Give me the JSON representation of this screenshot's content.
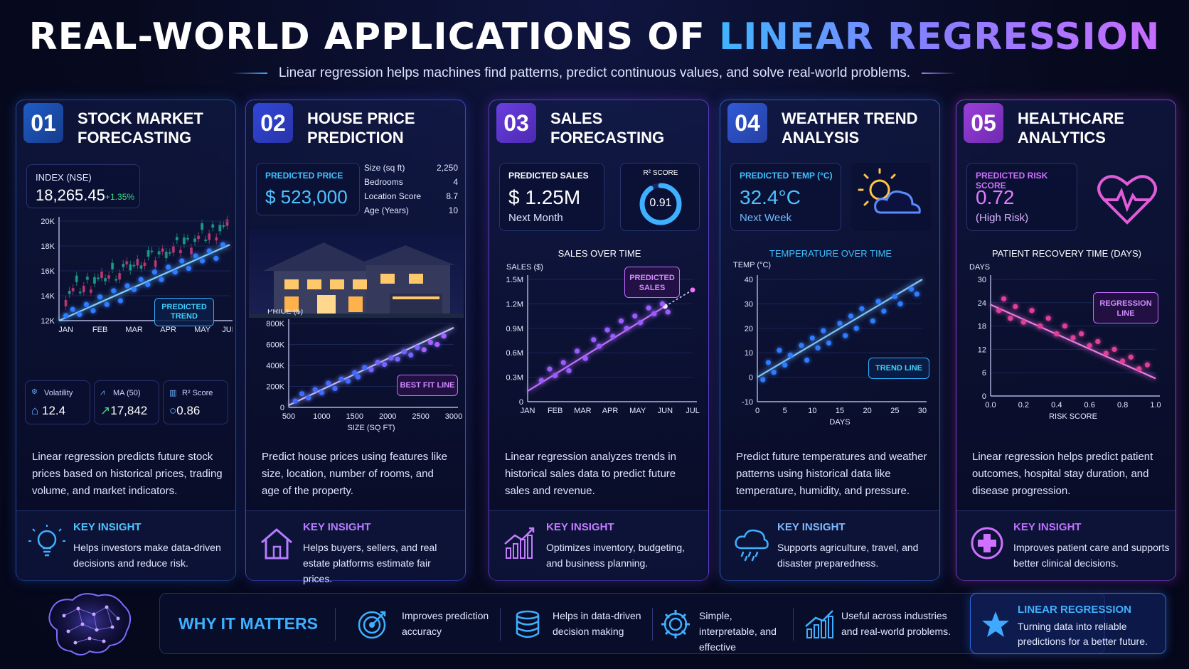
{
  "header": {
    "title_main": "REAL-WORLD APPLICATIONS OF ",
    "title_highlight": "LINEAR REGRESSION",
    "subtitle": "Linear regression helps machines find patterns, predict continuous values, and solve real-world problems."
  },
  "cards": [
    {
      "number": "01",
      "title": "STOCK MARKET FORECASTING",
      "index_label": "INDEX (NSE)",
      "index_value": "18,265.45",
      "index_change": "+1.35%",
      "annotation": "PREDICTED TREND",
      "stats": [
        {
          "label": "Volatility",
          "value": "12.4"
        },
        {
          "label": "MA (50)",
          "value": "17,842"
        },
        {
          "label": "R² Score",
          "value": "0.86"
        }
      ],
      "description": "Linear regression predicts future stock prices based on historical prices, trading volume, and market indicators.",
      "insight_heading": "KEY INSIGHT",
      "insight_text": "Helps investors make data-driven decisions and reduce risk."
    },
    {
      "number": "02",
      "title": "HOUSE PRICE PREDICTION",
      "price_label": "PREDICTED PRICE",
      "price_value": "$ 523,000",
      "features": [
        {
          "label": "Size (sq ft)",
          "value": "2,250"
        },
        {
          "label": "Bedrooms",
          "value": "4"
        },
        {
          "label": "Location Score",
          "value": "8.7"
        },
        {
          "label": "Age (Years)",
          "value": "10"
        }
      ],
      "annotation": "BEST FIT LINE",
      "description": "Predict house prices using features like size, location, number of rooms, and age of the property.",
      "insight_heading": "KEY INSIGHT",
      "insight_text": "Helps buyers, sellers, and real estate platforms estimate fair prices."
    },
    {
      "number": "03",
      "title": "SALES FORECASTING",
      "sales_label": "PREDICTED SALES",
      "sales_value": "$ 1.25M",
      "sales_sub": "Next Month",
      "r2_label": "R² SCORE",
      "r2_value": "0.91",
      "r2_fraction": 0.91,
      "annotation": "PREDICTED SALES",
      "description": "Linear regression analyzes trends in historical sales data to predict future sales and revenue.",
      "insight_heading": "KEY INSIGHT",
      "insight_text": "Optimizes inventory, budgeting, and business planning."
    },
    {
      "number": "04",
      "title": "WEATHER TREND ANALYSIS",
      "temp_label": "PREDICTED TEMP (°C)",
      "temp_value": "32.4°C",
      "temp_sub": "Next Week",
      "annotation": "TREND LINE",
      "description": "Predict future temperatures and weather patterns using historical data like temperature, humidity, and pressure.",
      "insight_heading": "KEY INSIGHT",
      "insight_text": "Supports agriculture, travel, and disaster preparedness."
    },
    {
      "number": "05",
      "title": "HEALTHCARE ANALYTICS",
      "risk_label": "PREDICTED RISK SCORE",
      "risk_value": "0.72",
      "risk_sub": "(High Risk)",
      "annotation": "REGRESSION LINE",
      "description": "Linear regression helps predict patient outcomes, hospital stay duration, and disease progression.",
      "insight_heading": "KEY INSIGHT",
      "insight_text": "Improves patient care and supports better clinical decisions."
    }
  ],
  "chart_data": [
    {
      "type": "line",
      "series": [],
      "x": [
        "JAN",
        "FEB",
        "MAR",
        "APR",
        "MAY",
        "JUN"
      ],
      "ylim": [
        12000,
        20000
      ],
      "yticks": [
        "12K",
        "14K",
        "16K",
        "18K",
        "20K"
      ],
      "points": [
        [
          0.2,
          12400
        ],
        [
          0.4,
          12900
        ],
        [
          0.6,
          12500
        ],
        [
          0.8,
          13300
        ],
        [
          1.0,
          12800
        ],
        [
          1.2,
          13900
        ],
        [
          1.4,
          13300
        ],
        [
          1.6,
          14400
        ],
        [
          1.8,
          13600
        ],
        [
          2.0,
          14800
        ],
        [
          2.2,
          14500
        ],
        [
          2.4,
          15300
        ],
        [
          2.6,
          14900
        ],
        [
          2.8,
          15900
        ],
        [
          3.0,
          15300
        ],
        [
          3.2,
          16300
        ],
        [
          3.4,
          15900
        ],
        [
          3.6,
          16800
        ],
        [
          3.8,
          16200
        ],
        [
          4.0,
          17200
        ],
        [
          4.2,
          16800
        ],
        [
          4.4,
          17600
        ],
        [
          4.6,
          17000
        ],
        [
          4.8,
          18100
        ]
      ],
      "trend": [
        [
          0,
          12000
        ],
        [
          5,
          18100
        ]
      ]
    },
    {
      "type": "scatter",
      "xlabel": "SIZE (SQ FT)",
      "ylabel": "PRICE ($)",
      "xlim": [
        500,
        3000
      ],
      "ylim": [
        0,
        800000
      ],
      "xticks": [
        "500",
        "1000",
        "1500",
        "2000",
        "2500",
        "3000"
      ],
      "yticks": [
        "0",
        "200K",
        "400K",
        "600K",
        "800K"
      ],
      "points": [
        [
          600,
          60000
        ],
        [
          700,
          130000
        ],
        [
          800,
          90000
        ],
        [
          900,
          170000
        ],
        [
          1000,
          140000
        ],
        [
          1100,
          230000
        ],
        [
          1200,
          180000
        ],
        [
          1300,
          270000
        ],
        [
          1400,
          250000
        ],
        [
          1500,
          330000
        ],
        [
          1550,
          290000
        ],
        [
          1650,
          380000
        ],
        [
          1750,
          360000
        ],
        [
          1850,
          430000
        ],
        [
          1950,
          410000
        ],
        [
          2050,
          470000
        ],
        [
          2150,
          460000
        ],
        [
          2250,
          530000
        ],
        [
          2350,
          500000
        ],
        [
          2450,
          570000
        ],
        [
          2550,
          550000
        ],
        [
          2650,
          620000
        ],
        [
          2750,
          600000
        ],
        [
          2850,
          680000
        ]
      ],
      "trend": [
        [
          500,
          20000
        ],
        [
          3000,
          760000
        ]
      ]
    },
    {
      "type": "scatter",
      "title": "SALES OVER TIME",
      "ylabel": "SALES ($)",
      "x": [
        "JAN",
        "FEB",
        "MAR",
        "APR",
        "MAY",
        "JUN",
        "JUL"
      ],
      "ylim": [
        0,
        1500000
      ],
      "yticks": [
        "0",
        "0.3M",
        "0.6M",
        "0.9M",
        "1.2M",
        "1.5M"
      ],
      "points": [
        [
          0.5,
          260000
        ],
        [
          0.8,
          400000
        ],
        [
          1.0,
          320000
        ],
        [
          1.3,
          480000
        ],
        [
          1.5,
          380000
        ],
        [
          1.8,
          620000
        ],
        [
          2.1,
          530000
        ],
        [
          2.4,
          760000
        ],
        [
          2.6,
          680000
        ],
        [
          2.9,
          880000
        ],
        [
          3.1,
          800000
        ],
        [
          3.4,
          990000
        ],
        [
          3.6,
          900000
        ],
        [
          3.9,
          1050000
        ],
        [
          4.1,
          970000
        ],
        [
          4.4,
          1150000
        ],
        [
          4.6,
          1080000
        ],
        [
          4.9,
          1200000
        ],
        [
          5.1,
          1100000
        ]
      ],
      "trend": [
        [
          0,
          130000
        ],
        [
          5.0,
          1170000
        ]
      ],
      "forecast": [
        [
          5.0,
          1170000
        ],
        [
          6.0,
          1370000
        ]
      ]
    },
    {
      "type": "scatter",
      "title": "TEMPERATURE OVER TIME",
      "xlabel": "DAYS",
      "ylabel": "TEMP (°C)",
      "xlim": [
        0,
        30
      ],
      "ylim": [
        -10,
        40
      ],
      "xticks": [
        "0",
        "5",
        "10",
        "15",
        "20",
        "25",
        "30"
      ],
      "yticks": [
        "-10",
        "0",
        "10",
        "20",
        "30",
        "40"
      ],
      "points": [
        [
          1,
          -1
        ],
        [
          2,
          6
        ],
        [
          3,
          2
        ],
        [
          4,
          11
        ],
        [
          5,
          5
        ],
        [
          6,
          9
        ],
        [
          8,
          13
        ],
        [
          9,
          7
        ],
        [
          10,
          16
        ],
        [
          11,
          12
        ],
        [
          12,
          19
        ],
        [
          13,
          14
        ],
        [
          15,
          22
        ],
        [
          16,
          17
        ],
        [
          17,
          25
        ],
        [
          18,
          20
        ],
        [
          19,
          28
        ],
        [
          21,
          23
        ],
        [
          22,
          31
        ],
        [
          23,
          27
        ],
        [
          25,
          33
        ],
        [
          26,
          30
        ],
        [
          28,
          36
        ],
        [
          29,
          34
        ]
      ],
      "trend": [
        [
          0,
          0
        ],
        [
          30,
          40
        ]
      ]
    },
    {
      "type": "scatter",
      "title": "PATIENT RECOVERY TIME (DAYS)",
      "xlabel": "RISK SCORE",
      "ylabel": "DAYS",
      "xlim": [
        0.0,
        1.0
      ],
      "ylim": [
        0,
        30
      ],
      "xticks": [
        "0.0",
        "0.2",
        "0.4",
        "0.6",
        "0.8",
        "1.0"
      ],
      "yticks": [
        "0",
        "6",
        "12",
        "18",
        "24",
        "30"
      ],
      "points": [
        [
          0.05,
          22
        ],
        [
          0.08,
          25
        ],
        [
          0.12,
          20
        ],
        [
          0.15,
          23
        ],
        [
          0.2,
          19
        ],
        [
          0.25,
          22
        ],
        [
          0.3,
          18
        ],
        [
          0.35,
          20
        ],
        [
          0.4,
          16
        ],
        [
          0.45,
          18
        ],
        [
          0.5,
          15
        ],
        [
          0.55,
          16
        ],
        [
          0.6,
          13
        ],
        [
          0.65,
          14
        ],
        [
          0.7,
          11
        ],
        [
          0.75,
          12
        ],
        [
          0.8,
          9
        ],
        [
          0.85,
          10
        ],
        [
          0.9,
          7
        ],
        [
          0.95,
          8
        ]
      ],
      "trend": [
        [
          0,
          23.5
        ],
        [
          1.0,
          4.5
        ]
      ]
    }
  ],
  "bottom": {
    "why_label": "WHY IT MATTERS",
    "items": [
      {
        "icon": "target-icon",
        "text": "Improves prediction accuracy"
      },
      {
        "icon": "database-icon",
        "text": "Helps in data-driven decision making"
      },
      {
        "icon": "gear-icon",
        "text": "Simple, interpretable, and effective"
      },
      {
        "icon": "bar-chart-icon",
        "text": "Useful across industries and real-world problems."
      }
    ],
    "callout_title": "LINEAR REGRESSION",
    "callout_text": "Turning data into reliable predictions for a better future."
  },
  "colors": {
    "blue": "#3fb0ff",
    "indigo": "#7b7bff",
    "purple": "#b56cff",
    "magenta": "#e05cd8",
    "green": "#3ddc84"
  }
}
